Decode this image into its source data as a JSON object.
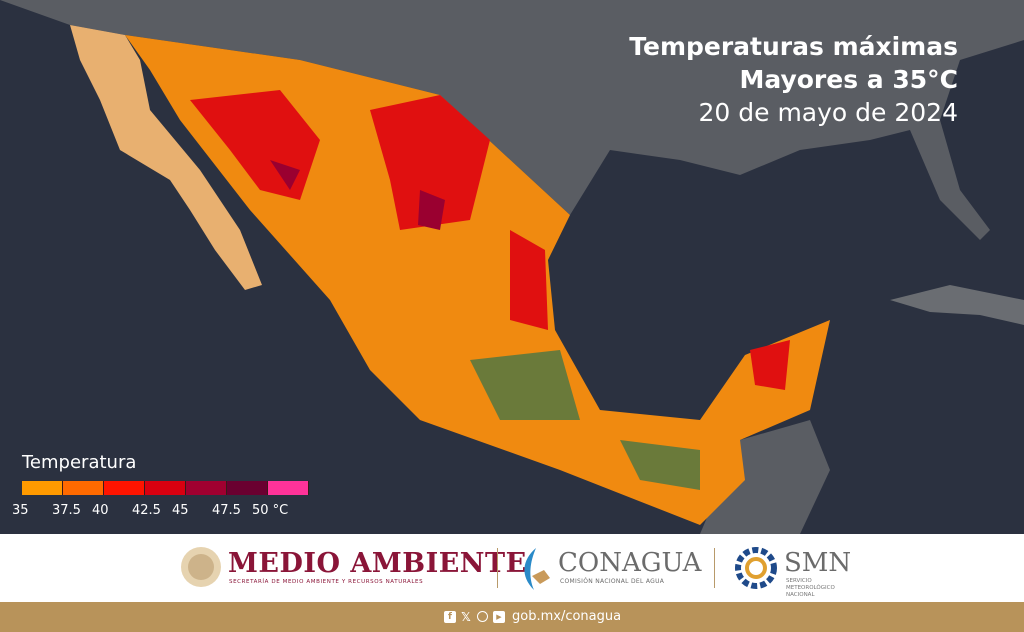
{
  "title": {
    "line1": "Temperaturas máximas",
    "line2": "Mayores a 35°C",
    "date": "20 de mayo de 2024"
  },
  "legend": {
    "title": "Temperatura",
    "colors": [
      "#ff9a00",
      "#ff6a00",
      "#ff1400",
      "#d90010",
      "#a00030",
      "#6a0030",
      "#ff3399"
    ],
    "ticks": [
      "35",
      "37.5",
      "40",
      "42.5",
      "45",
      "47.5",
      "50 °C"
    ]
  },
  "logos": {
    "medio_ambiente": "MEDIO AMBIENTE",
    "medio_ambiente_sub": "SECRETARÍA DE MEDIO AMBIENTE Y RECURSOS NATURALES",
    "conagua": "CONAGUA",
    "conagua_sub": "COMISIÓN NACIONAL DEL AGUA",
    "smn": "SMN",
    "smn_sub": [
      "SERVICIO",
      "METEOROLÓGICO",
      "NACIONAL"
    ]
  },
  "footer": {
    "social_icons": [
      "facebook-icon",
      "x-icon",
      "instagram-icon",
      "youtube-icon"
    ],
    "url": "gob.mx/conagua"
  }
}
